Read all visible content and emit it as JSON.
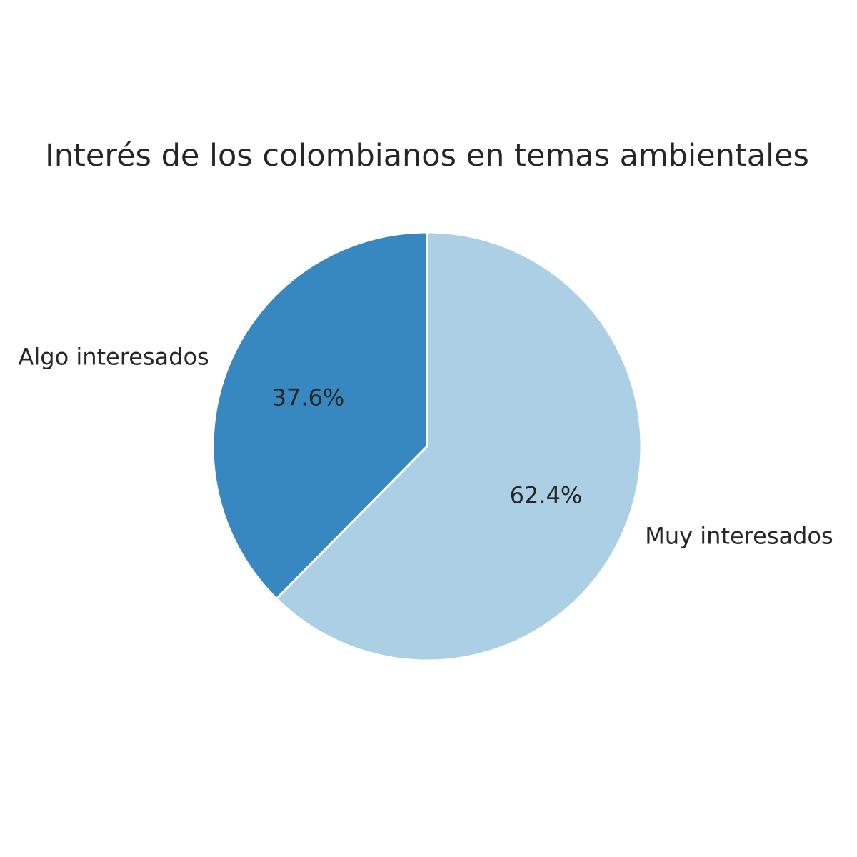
{
  "chart_data": {
    "type": "pie",
    "title": "Interés de los colombianos en temas ambientales",
    "start_angle_deg": 90,
    "direction": "counterclockwise",
    "slices": [
      {
        "label": "Algo interesados",
        "value": 37.6,
        "percent_label": "37.6%",
        "color": "#3787c0"
      },
      {
        "label": "Muy interesados",
        "value": 62.4,
        "percent_label": "62.4%",
        "color": "#abcfe5"
      }
    ],
    "edge_color": "#ffffff",
    "legend": "none"
  }
}
